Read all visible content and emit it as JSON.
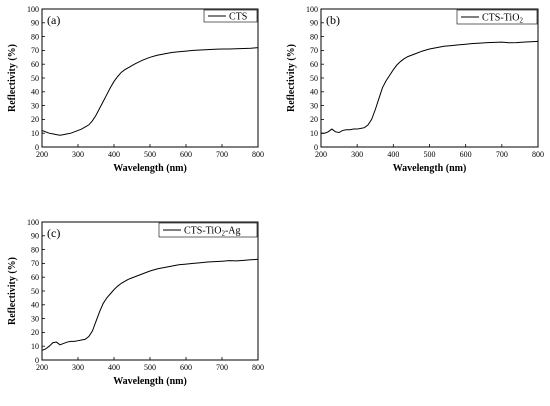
{
  "chart_data": [
    {
      "type": "line",
      "panel_label": "(a)",
      "xlabel": "Wavelength (nm)",
      "ylabel": "Reflectivity (%)",
      "xlim": [
        200,
        800
      ],
      "ylim": [
        0,
        100
      ],
      "xticks": [
        200,
        300,
        400,
        500,
        600,
        700,
        800
      ],
      "yticks": [
        0,
        10,
        20,
        30,
        40,
        50,
        60,
        70,
        80,
        90,
        100
      ],
      "legend": {
        "position": "top-right",
        "label": "CTS",
        "sub": "",
        "tail": ""
      },
      "series": [
        {
          "name": "CTS",
          "color": "#000000",
          "x": [
            200,
            210,
            220,
            230,
            240,
            250,
            260,
            270,
            280,
            290,
            300,
            310,
            320,
            330,
            340,
            350,
            360,
            370,
            380,
            390,
            400,
            410,
            420,
            430,
            440,
            450,
            460,
            480,
            500,
            520,
            540,
            560,
            580,
            600,
            620,
            640,
            660,
            680,
            700,
            720,
            740,
            760,
            780,
            800
          ],
          "y": [
            12,
            11,
            10,
            9.5,
            9,
            8.5,
            9,
            9.5,
            10,
            11,
            12,
            13,
            14.5,
            16,
            19,
            23,
            28,
            33,
            38,
            43,
            47.5,
            51,
            54,
            56,
            57.5,
            59,
            60.5,
            63,
            65,
            66.5,
            67.5,
            68.5,
            69,
            69.5,
            70,
            70.3,
            70.6,
            70.8,
            71,
            71,
            71.2,
            71.4,
            71.6,
            72
          ]
        }
      ]
    },
    {
      "type": "line",
      "panel_label": "(b)",
      "xlabel": "Wavelength (nm)",
      "ylabel": "Reflectivity (%)",
      "xlim": [
        200,
        800
      ],
      "ylim": [
        0,
        100
      ],
      "xticks": [
        200,
        300,
        400,
        500,
        600,
        700,
        800
      ],
      "yticks": [
        0,
        10,
        20,
        30,
        40,
        50,
        60,
        70,
        80,
        90,
        100
      ],
      "legend": {
        "position": "top-right",
        "label": "CTS-TiO",
        "sub": "2",
        "tail": ""
      },
      "series": [
        {
          "name": "CTS-TiO2",
          "color": "#000000",
          "x": [
            200,
            210,
            220,
            230,
            240,
            250,
            260,
            270,
            280,
            290,
            300,
            310,
            320,
            330,
            340,
            350,
            360,
            370,
            380,
            390,
            400,
            410,
            420,
            430,
            440,
            450,
            460,
            480,
            500,
            520,
            540,
            560,
            580,
            600,
            620,
            640,
            660,
            680,
            700,
            720,
            740,
            760,
            780,
            800
          ],
          "y": [
            10,
            10,
            11,
            13,
            11,
            10.5,
            12,
            12.5,
            12.5,
            13,
            13,
            13.5,
            14,
            16,
            20,
            27,
            35,
            43,
            48,
            52,
            56,
            59.5,
            62,
            64,
            65.5,
            66.5,
            67.5,
            69.5,
            71,
            72,
            73,
            73.5,
            74,
            74.5,
            75,
            75.3,
            75.6,
            75.8,
            76,
            75.5,
            75.6,
            76,
            76.3,
            76.5
          ]
        }
      ]
    },
    {
      "type": "line",
      "panel_label": "(c)",
      "xlabel": "Wavelength (nm)",
      "ylabel": "Reflectivity (%)",
      "xlim": [
        200,
        800
      ],
      "ylim": [
        0,
        100
      ],
      "xticks": [
        200,
        300,
        400,
        500,
        600,
        700,
        800
      ],
      "yticks": [
        0,
        10,
        20,
        30,
        40,
        50,
        60,
        70,
        80,
        90,
        100
      ],
      "legend": {
        "position": "top-right",
        "label": "CTS-TiO",
        "sub": "2",
        "tail": "-Ag"
      },
      "series": [
        {
          "name": "CTS-TiO2-Ag",
          "color": "#000000",
          "x": [
            200,
            210,
            220,
            230,
            240,
            250,
            260,
            270,
            280,
            290,
            300,
            310,
            320,
            330,
            340,
            350,
            360,
            370,
            380,
            390,
            400,
            410,
            420,
            430,
            440,
            450,
            460,
            480,
            500,
            520,
            540,
            560,
            580,
            600,
            620,
            640,
            660,
            680,
            700,
            720,
            740,
            760,
            780,
            800
          ],
          "y": [
            7,
            8,
            10,
            12.5,
            13,
            11,
            12,
            13,
            13.5,
            13.5,
            14,
            14.5,
            15,
            17,
            21,
            28,
            35,
            41,
            45,
            48,
            51,
            53.5,
            55.5,
            57,
            58.5,
            59.5,
            60.5,
            62.5,
            64.5,
            66,
            67,
            68,
            69,
            69.5,
            70,
            70.5,
            71,
            71.3,
            71.6,
            72,
            71.8,
            72.2,
            72.6,
            73
          ]
        }
      ]
    }
  ]
}
